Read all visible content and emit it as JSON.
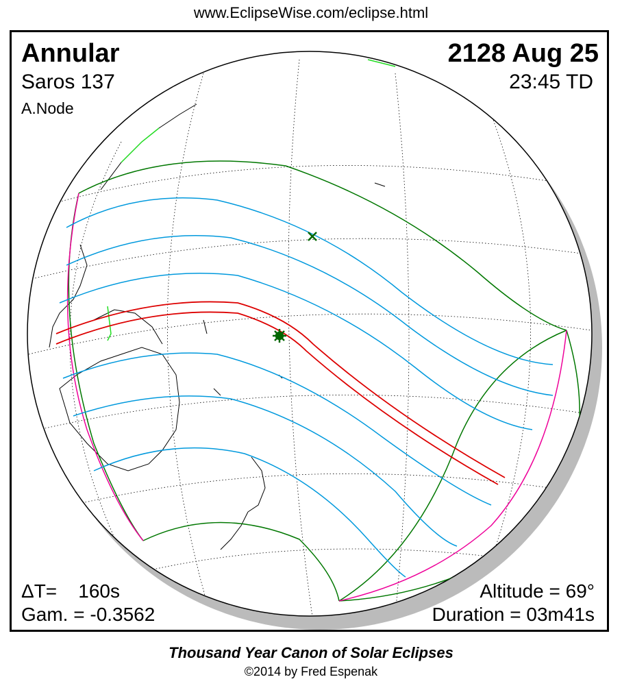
{
  "header": {
    "url": "www.EclipseWise.com/eclipse.html"
  },
  "eclipse": {
    "type": "Annular",
    "saros": "Saros 137",
    "node": "A.Node",
    "date": "2128 Aug 25",
    "time": "23:45 TD"
  },
  "stats": {
    "delta_t": "ΔT=    160s",
    "gamma": "Gam. = -0.3562",
    "altitude": "Altitude = 69°",
    "duration": "Duration = 03m41s"
  },
  "footer": {
    "canon": "Thousand Year Canon of Solar Eclipses",
    "copyright": "©2014 by Fred Espenak"
  },
  "colors": {
    "path_central": "#dd0000",
    "penumbra_lines": "#0099dd",
    "limits": "#007700",
    "rise_set": "#ee0099",
    "coastline_highlight": "#22dd22",
    "shadow": "#bbbbbb"
  },
  "icons": {
    "greatest_eclipse": "star-marker-icon",
    "subsolar_point": "x-marker-icon"
  }
}
